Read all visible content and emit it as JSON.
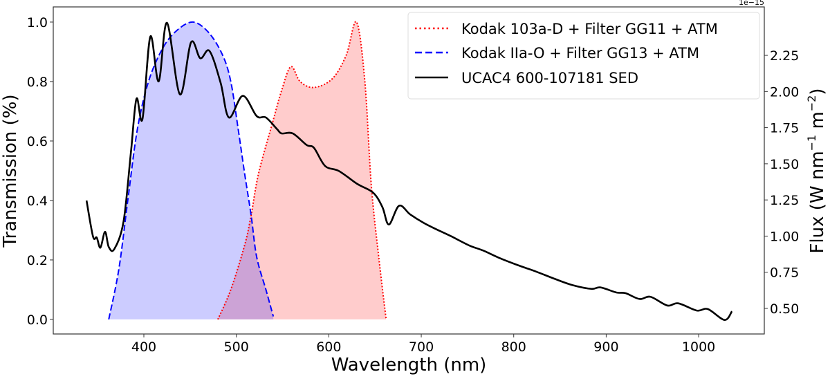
{
  "chart_data": {
    "type": "line",
    "title": "",
    "xlabel": "Wavelength (nm)",
    "ylabel_left": "Transmission (%)",
    "ylabel_right": "Flux (W nm$^{-1}$ m$^{-2}$)",
    "ylabel_right_parts": {
      "base": "Flux (W nm",
      "exp1": "−1",
      "mid": " m",
      "exp2": "−2",
      "end": ")"
    },
    "right_axis_offset_text": "1e−15",
    "xlim": [
      302,
      1071
    ],
    "ylim_left": [
      -0.049,
      1.051
    ],
    "ylim_right": [
      0.323,
      2.585
    ],
    "xticks": [
      400,
      500,
      600,
      700,
      800,
      900,
      1000
    ],
    "yticks_left": [
      "0.0",
      "0.2",
      "0.4",
      "0.6",
      "0.8",
      "1.0"
    ],
    "yticks_right": [
      "0.50",
      "0.75",
      "1.00",
      "1.25",
      "1.50",
      "1.75",
      "2.00",
      "2.25"
    ],
    "grid": false,
    "legend_position": "top-right",
    "series": [
      {
        "name": "Kodak 103a-D + Filter GG11 + ATM",
        "axis": "left",
        "color": "#ff0000",
        "style": "dotted",
        "fill": "#ff0000",
        "x": [
          480,
          494,
          509,
          516,
          524,
          539,
          549,
          559,
          569,
          584,
          604,
          619,
          630,
          639,
          646,
          654,
          662
        ],
        "y": [
          0.0,
          0.1,
          0.25,
          0.35,
          0.49,
          0.66,
          0.77,
          0.85,
          0.8,
          0.78,
          0.81,
          0.89,
          1.0,
          0.8,
          0.45,
          0.21,
          0.0
        ]
      },
      {
        "name": "Kodak IIa-O + Filter GG13 + ATM",
        "axis": "left",
        "color": "#0000ff",
        "style": "dashed",
        "fill": "#0000ff",
        "x": [
          362,
          373,
          383,
          393,
          405,
          420,
          435,
          453,
          470,
          485,
          494,
          502,
          509,
          516,
          522,
          532,
          540
        ],
        "y": [
          0.0,
          0.17,
          0.41,
          0.64,
          0.8,
          0.91,
          0.97,
          1.0,
          0.965,
          0.89,
          0.8,
          0.64,
          0.49,
          0.35,
          0.21,
          0.1,
          0.01
        ]
      },
      {
        "name": "UCAC4 600-107181 SED",
        "axis": "right",
        "color": "#000000",
        "style": "solid",
        "x": [
          338,
          345,
          349,
          353,
          358,
          362,
          368,
          378,
          386,
          392,
          398.5,
          407,
          416,
          425,
          439,
          451,
          461,
          471,
          483,
          492,
          507,
          522,
          532,
          544,
          549,
          561,
          576,
          584,
          596,
          611,
          631,
          648,
          658,
          665,
          676,
          688,
          703,
          717,
          732,
          752,
          767,
          784,
          804,
          824,
          844,
          864,
          884,
          894,
          911,
          921,
          936,
          948,
          966,
          978,
          998,
          1010,
          1028,
          1036
        ],
        "y": [
          1.246,
          0.997,
          0.99,
          0.92,
          1.03,
          0.925,
          0.91,
          1.1,
          1.58,
          1.95,
          1.81,
          2.38,
          2.07,
          2.475,
          1.98,
          2.34,
          2.23,
          2.28,
          2.06,
          1.82,
          1.97,
          1.83,
          1.82,
          1.74,
          1.71,
          1.71,
          1.63,
          1.61,
          1.485,
          1.45,
          1.36,
          1.3,
          1.2,
          1.08,
          1.21,
          1.15,
          1.09,
          1.045,
          1.0,
          0.935,
          0.9,
          0.85,
          0.8,
          0.755,
          0.705,
          0.66,
          0.635,
          0.645,
          0.61,
          0.605,
          0.565,
          0.58,
          0.52,
          0.535,
          0.485,
          0.495,
          0.42,
          0.48
        ]
      }
    ]
  }
}
